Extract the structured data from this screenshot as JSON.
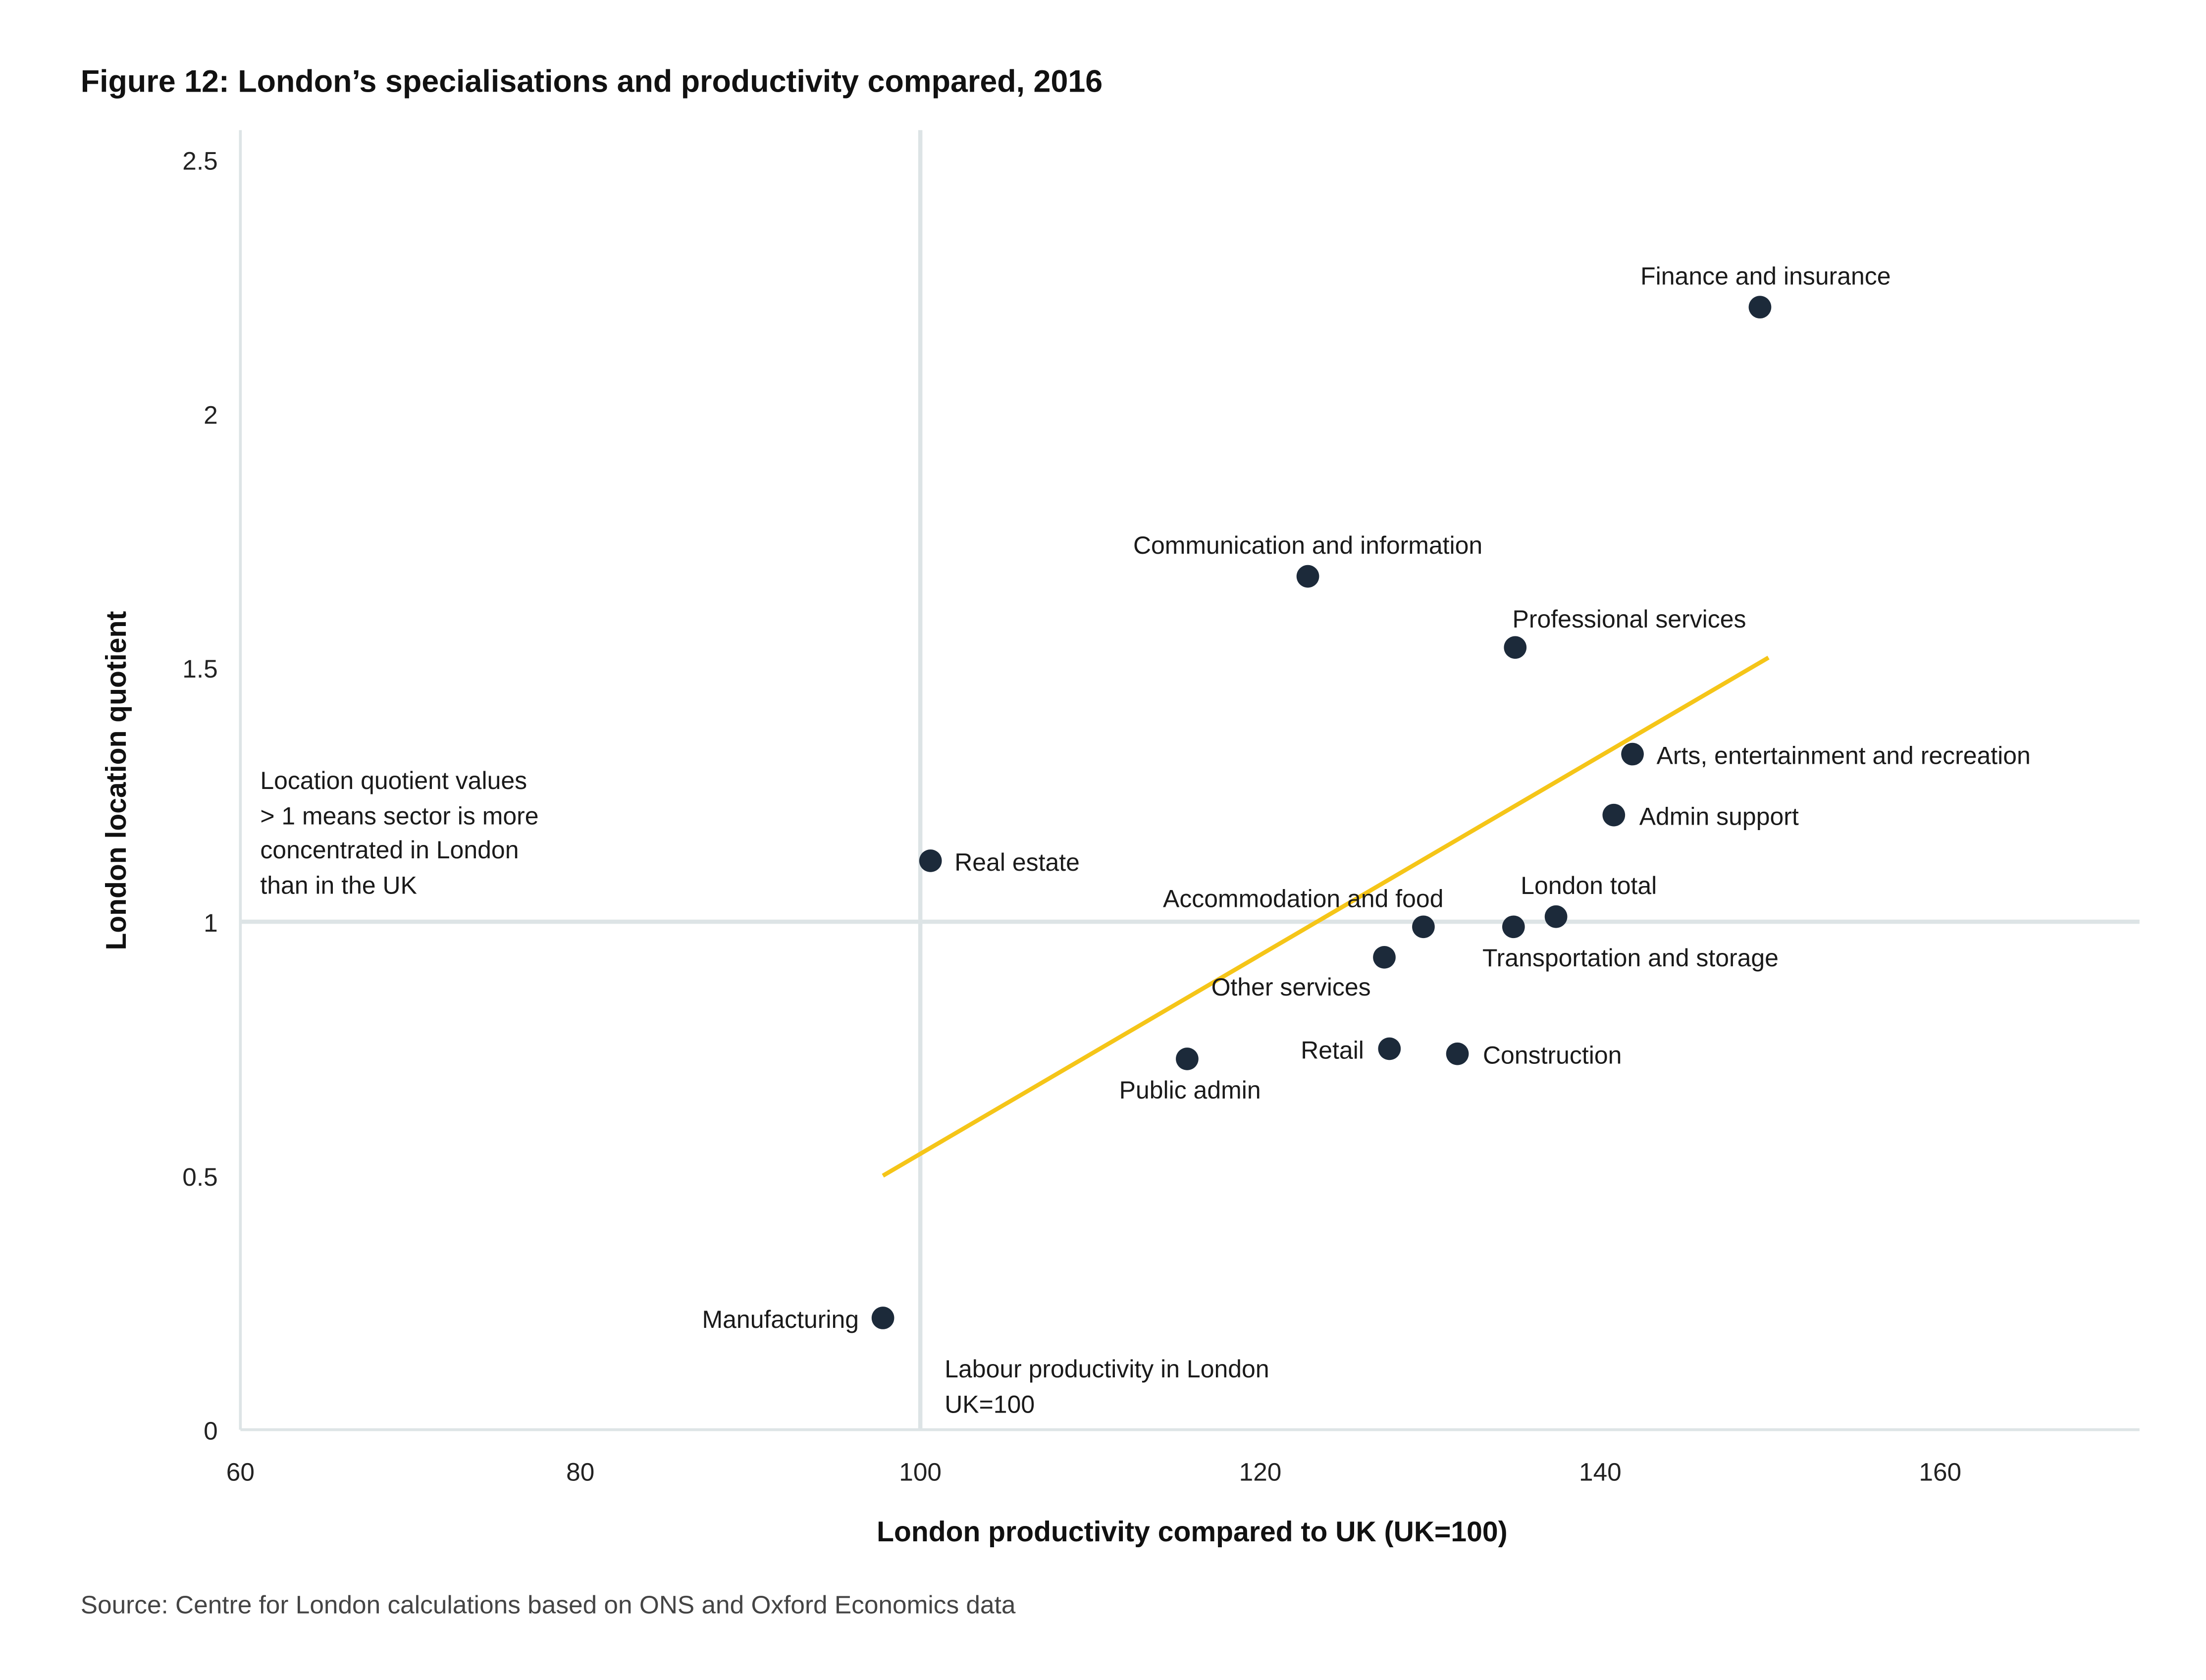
{
  "chart_data": {
    "type": "scatter",
    "title": "Figure 12: London’s specialisations and productivity compared, 2016",
    "xlabel": "London productivity compared to UK (UK=100)",
    "ylabel": "London location quotient",
    "xlim": [
      60,
      172
    ],
    "ylim": [
      0,
      2.56
    ],
    "x_ticks": [
      60,
      80,
      100,
      120,
      140,
      160
    ],
    "y_ticks": [
      0,
      0.5,
      1,
      1.5,
      2,
      2.5
    ],
    "y_tick_labels": [
      "0",
      "0.5",
      "1",
      "1.5",
      "2",
      "2.5"
    ],
    "grid": false,
    "reference_lines": {
      "x": 100,
      "y": 1
    },
    "points": [
      {
        "label": "Finance and insurance",
        "x": 149.4,
        "y": 2.21
      },
      {
        "label": "Communication and information",
        "x": 122.8,
        "y": 1.68
      },
      {
        "label": "Professional services",
        "x": 135.0,
        "y": 1.54
      },
      {
        "label": "Arts, entertainment and recreation",
        "x": 141.9,
        "y": 1.33
      },
      {
        "label": "Admin support",
        "x": 140.8,
        "y": 1.21
      },
      {
        "label": "Real estate",
        "x": 100.6,
        "y": 1.12
      },
      {
        "label": "London total",
        "x": 137.4,
        "y": 1.01
      },
      {
        "label": "Accommodation and food",
        "x": 129.6,
        "y": 0.99
      },
      {
        "label": "Transportation and storage",
        "x": 134.9,
        "y": 0.99
      },
      {
        "label": "Other services",
        "x": 127.3,
        "y": 0.93
      },
      {
        "label": "Retail",
        "x": 127.6,
        "y": 0.75
      },
      {
        "label": "Construction",
        "x": 131.6,
        "y": 0.74
      },
      {
        "label": "Public admin",
        "x": 115.7,
        "y": 0.73
      },
      {
        "label": "Manufacturing",
        "x": 97.8,
        "y": 0.22
      }
    ],
    "trendline": {
      "x": [
        97.8,
        149.9
      ],
      "y": [
        0.5,
        1.52
      ]
    },
    "annotations": {
      "location_quotient_note": [
        "Location quotient values",
        "> 1 means sector is more",
        "concentrated in London",
        "than in the UK"
      ],
      "productivity_note": [
        "Labour productivity in London",
        "UK=100"
      ]
    },
    "colors": {
      "points": "#1c2a3a",
      "trendline": "#f5c518",
      "reference_lines": "#dde4e6",
      "axes": "#dde4e6"
    }
  },
  "source": "Source: Centre for London calculations based on ONS and Oxford Economics data"
}
